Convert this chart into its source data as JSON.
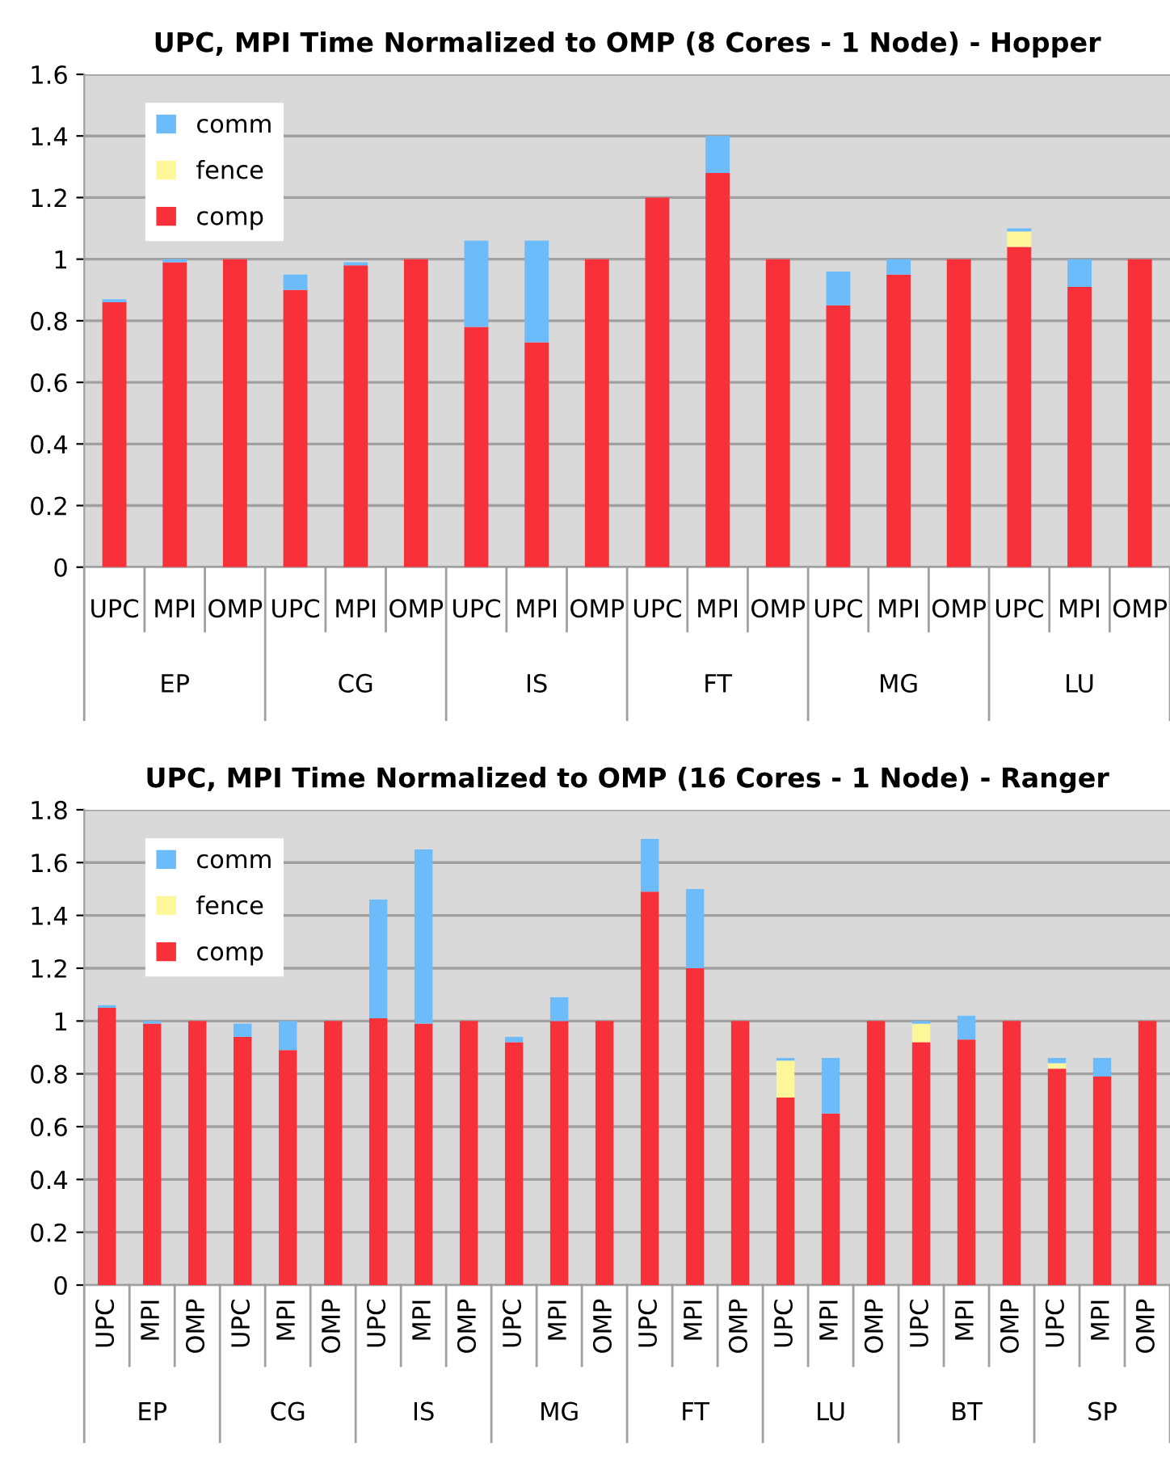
{
  "chart_data": [
    {
      "type": "bar",
      "title": "UPC, MPI Time Normalized to OMP (8 Cores - 1 Node) - Hopper",
      "stacked": true,
      "legend": "top left",
      "grid": "y",
      "categories": [
        "UPC",
        "MPI",
        "OMP",
        "UPC",
        "MPI",
        "OMP",
        "UPC",
        "MPI",
        "OMP",
        "UPC",
        "MPI",
        "OMP",
        "UPC",
        "MPI",
        "OMP",
        "UPC",
        "MPI",
        "OMP"
      ],
      "annotations": [
        "EP",
        "CG",
        "IS",
        "FT",
        "MG",
        "LU"
      ],
      "ylim": [
        0,
        1.6
      ],
      "yticks": [
        0,
        0.2,
        0.4,
        0.6,
        0.8,
        1,
        1.2,
        1.4,
        1.6
      ],
      "series": [
        {
          "name": "comp",
          "color": "#f83039",
          "values": [
            0.86,
            0.99,
            1,
            0.9,
            0.98,
            1,
            0.78,
            0.73,
            1,
            1.2,
            1.28,
            1,
            0.85,
            0.95,
            1,
            1.04,
            0.91,
            1
          ]
        },
        {
          "name": "fence",
          "color": "#fdf79a",
          "values": [
            0,
            0,
            0,
            0,
            0,
            0,
            0,
            0,
            0,
            0,
            0,
            0,
            0,
            0,
            0,
            0.05,
            0,
            0
          ]
        },
        {
          "name": "comm",
          "color": "#6cbcfc",
          "values": [
            0.01,
            0.01,
            0,
            0.05,
            0.01,
            0,
            0.28,
            0.33,
            0,
            0,
            0.12,
            0,
            0.11,
            0.05,
            0,
            0.01,
            0.09,
            0
          ]
        }
      ]
    },
    {
      "type": "bar",
      "title": "UPC, MPI Time Normalized to OMP (16 Cores - 1 Node) - Ranger",
      "stacked": true,
      "legend": "top left",
      "grid": "y",
      "categories": [
        "UPC",
        "MPI",
        "OMP",
        "UPC",
        "MPI",
        "OMP",
        "UPC",
        "MPI",
        "OMP",
        "UPC",
        "MPI",
        "OMP",
        "UPC",
        "MPI",
        "OMP",
        "UPC",
        "MPI",
        "OMP",
        "UPC",
        "MPI",
        "OMP",
        "UPC",
        "MPI",
        "OMP"
      ],
      "annotations": [
        "EP",
        "CG",
        "IS",
        "MG",
        "FT",
        "LU",
        "BT",
        "SP"
      ],
      "ylim": [
        0,
        1.8
      ],
      "yticks": [
        0,
        0.2,
        0.4,
        0.6,
        0.8,
        1,
        1.2,
        1.4,
        1.6,
        1.8
      ],
      "series": [
        {
          "name": "comp",
          "color": "#f83039",
          "values": [
            1.05,
            0.99,
            1,
            0.94,
            0.89,
            1,
            1.01,
            0.99,
            1,
            0.92,
            1.0,
            1,
            1.49,
            1.2,
            1,
            0.71,
            0.65,
            1,
            0.92,
            0.93,
            1,
            0.82,
            0.79,
            1
          ]
        },
        {
          "name": "fence",
          "color": "#fdf79a",
          "values": [
            0,
            0,
            0,
            0,
            0,
            0,
            0,
            0,
            0,
            0,
            0,
            0,
            0,
            0,
            0,
            0.14,
            0,
            0,
            0.07,
            0,
            0,
            0.02,
            0,
            0
          ]
        },
        {
          "name": "comm",
          "color": "#6cbcfc",
          "values": [
            0.01,
            0.01,
            0,
            0.05,
            0.11,
            0,
            0.45,
            0.66,
            0,
            0.02,
            0.09,
            0,
            0.2,
            0.3,
            0,
            0.01,
            0.21,
            0,
            0.01,
            0.09,
            0,
            0.02,
            0.07,
            0
          ]
        }
      ]
    }
  ]
}
